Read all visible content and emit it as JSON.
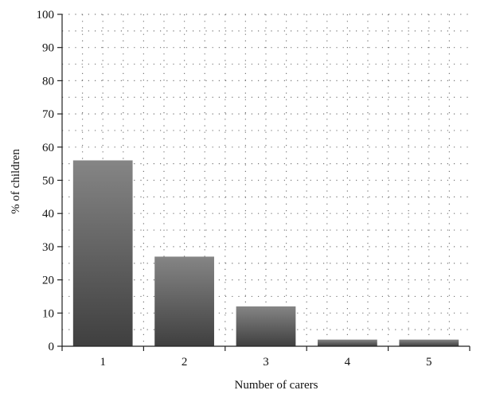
{
  "chart_data": {
    "type": "bar",
    "categories": [
      "1",
      "2",
      "3",
      "4",
      "5"
    ],
    "values": [
      56,
      27,
      12,
      2,
      2
    ],
    "title": "",
    "xlabel": "Number of carers",
    "ylabel": "% of children",
    "ylim": [
      0,
      100
    ],
    "yticks": [
      0,
      10,
      20,
      30,
      40,
      50,
      60,
      70,
      80,
      90,
      100
    ],
    "grid": true,
    "grid_style": "dotted",
    "bar_gradient": [
      "#3f3f3f",
      "#858585"
    ]
  }
}
